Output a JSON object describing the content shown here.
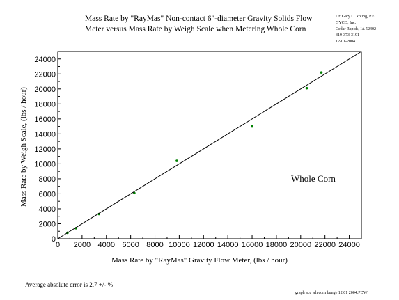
{
  "chart_data": {
    "type": "scatter",
    "title_lines": [
      "Mass Rate by \"RayMas\" Non-contact 6\"-diameter Gravity Solids Flow",
      "Meter versus Mass Rate by Weigh Scale when Metering Whole Corn"
    ],
    "xlabel": "Mass Rate by \"RayMas\" Gravity Flow Meter, (lbs / hour)",
    "ylabel": "Mass Rate by Weigh Scale, (lbs / hour)",
    "xlim": [
      0,
      25000
    ],
    "ylim": [
      0,
      25000
    ],
    "x_ticks": [
      0,
      2000,
      4000,
      6000,
      8000,
      10000,
      12000,
      14000,
      16000,
      18000,
      20000,
      22000,
      24000
    ],
    "y_ticks": [
      0,
      2000,
      4000,
      6000,
      8000,
      10000,
      12000,
      14000,
      16000,
      18000,
      20000,
      22000,
      24000
    ],
    "grid": false,
    "annotation": "Whole Corn",
    "series": [
      {
        "type": "scatter",
        "marker_color": "#008000",
        "x": [
          800,
          1500,
          3400,
          6300,
          9800,
          16000,
          20500,
          21700
        ],
        "y": [
          800,
          1400,
          3300,
          6100,
          10400,
          15000,
          20100,
          22200
        ]
      },
      {
        "type": "line",
        "line_color": "#000000",
        "x": [
          0,
          25000
        ],
        "y": [
          0,
          25000
        ]
      }
    ]
  },
  "author_block": [
    "Dr. Gary C. Young, P.E.",
    "GYCO, Inc.",
    "Cedar Rapids, IA 52402",
    "319-373-3191",
    "12-01-2004"
  ],
  "footer": {
    "error_note": "Average absolute error is 2.7 +/- %",
    "file_name": "graph acc wh corn bunge 12 01 2004.PDW"
  }
}
